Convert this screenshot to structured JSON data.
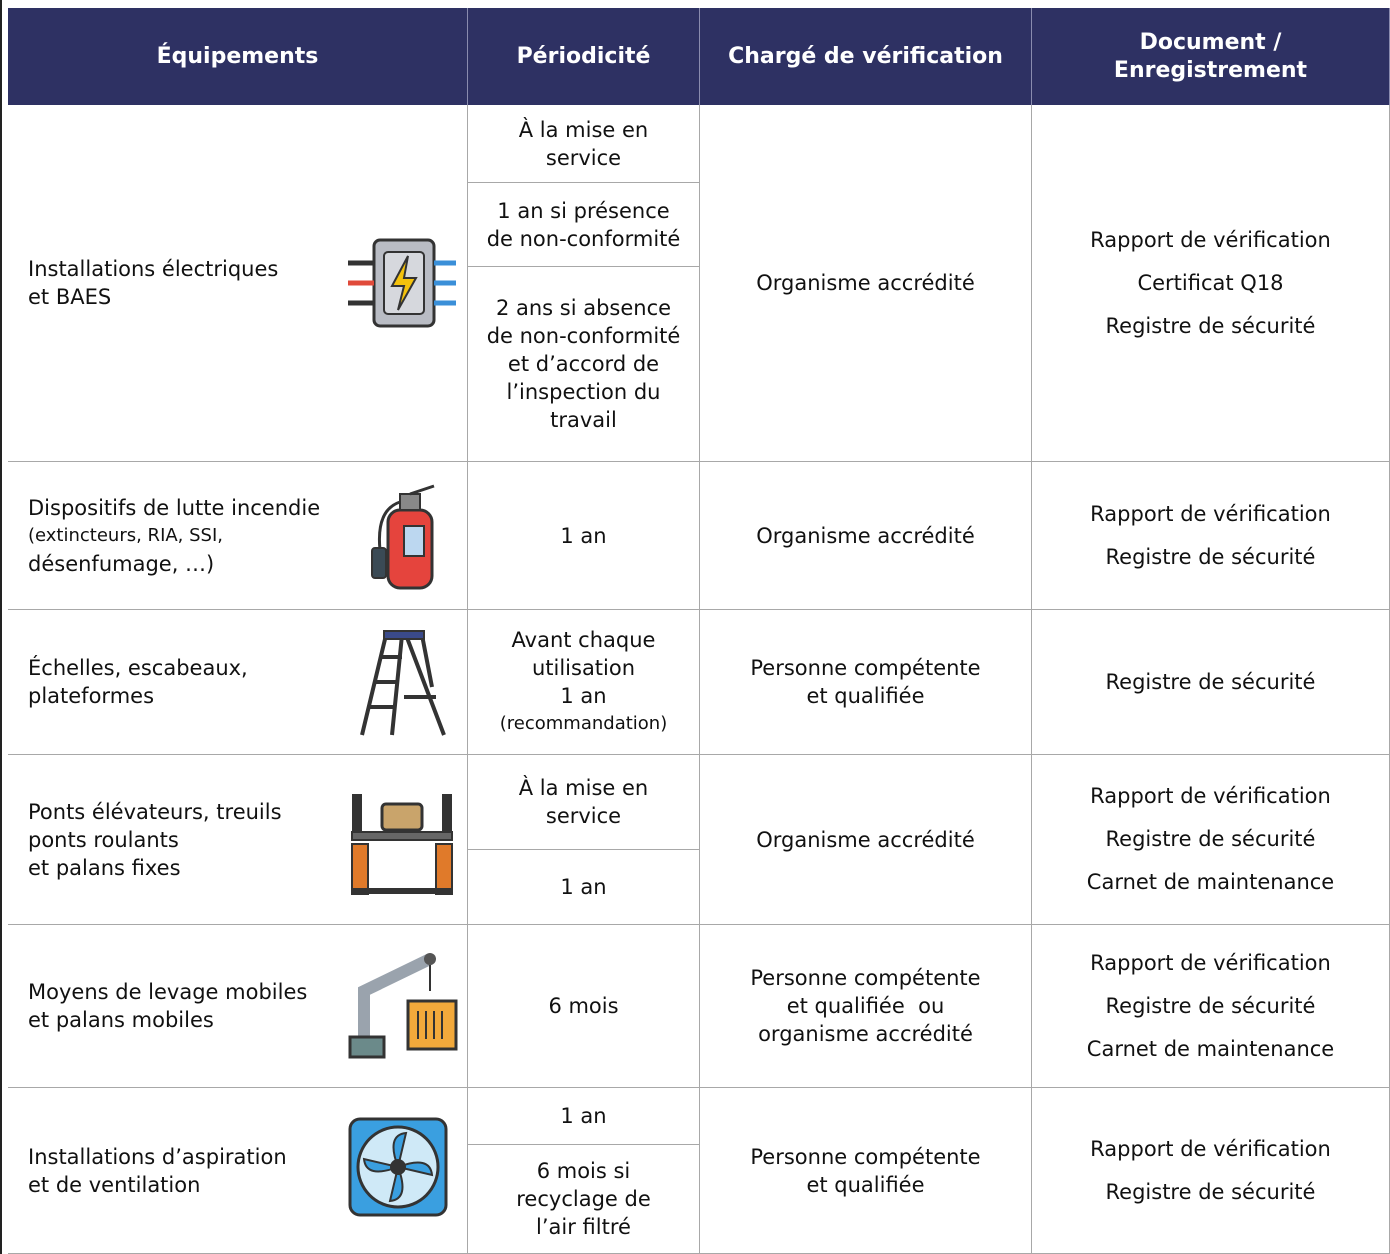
{
  "header": {
    "columns": [
      [
        "Équipements"
      ],
      [
        "Périodicité"
      ],
      [
        "Chargé de vérification"
      ],
      [
        "Document /",
        "Enregistrement"
      ]
    ]
  },
  "rows": [
    {
      "equipment": [
        "Installations électriques",
        "et BAES"
      ],
      "periodicity": [
        [
          "À la mise en",
          "service"
        ],
        [
          "1 an si présence",
          "de non-conformité"
        ],
        [
          "2 ans si absence",
          "de non-conformité",
          "et d’accord de",
          "l’inspection du",
          "travail"
        ]
      ],
      "verifier": [
        "Organisme accrédité"
      ],
      "documents": [
        "Rapport de vérification",
        "Certificat Q18",
        "Registre de sécurité"
      ]
    },
    {
      "equipment": [
        "Dispositifs de lutte incendie",
        "(extincteurs, RIA, SSI,",
        "désenfumage, …)"
      ],
      "periodicity": [
        [
          "1 an"
        ]
      ],
      "verifier": [
        "Organisme accrédité"
      ],
      "documents": [
        "Rapport de vérification",
        "Registre de sécurité"
      ]
    },
    {
      "equipment": [
        "Échelles, escabeaux,",
        "plateformes"
      ],
      "periodicity": [
        [
          "Avant chaque",
          "utilisation",
          "1 an",
          "(recommandation)"
        ]
      ],
      "verifier": [
        "Personne compétente",
        "et qualifiée"
      ],
      "documents": [
        "Registre de sécurité"
      ]
    },
    {
      "equipment": [
        "Ponts élévateurs, treuils",
        "ponts roulants",
        "et palans fixes"
      ],
      "periodicity": [
        [
          "À la mise en",
          "service"
        ],
        [
          "1 an"
        ]
      ],
      "verifier": [
        "Organisme accrédité"
      ],
      "documents": [
        "Rapport de vérification",
        "Registre de sécurité",
        "Carnet de maintenance"
      ]
    },
    {
      "equipment": [
        "Moyens de levage mobiles",
        "et palans mobiles"
      ],
      "periodicity": [
        [
          "6 mois"
        ]
      ],
      "verifier": [
        "Personne compétente",
        "et qualifiée  ou",
        "organisme accrédité"
      ],
      "documents": [
        "Rapport de vérification",
        "Registre de sécurité",
        "Carnet de maintenance"
      ]
    },
    {
      "equipment": [
        "Installations d’aspiration",
        "et de ventilation"
      ],
      "periodicity": [
        [
          "1 an"
        ],
        [
          "6 mois si",
          "recyclage de",
          "l’air filtré"
        ]
      ],
      "verifier": [
        "Personne compétente",
        "et qualifiée"
      ],
      "documents": [
        "Rapport de vérification",
        "Registre de sécurité"
      ]
    }
  ]
}
